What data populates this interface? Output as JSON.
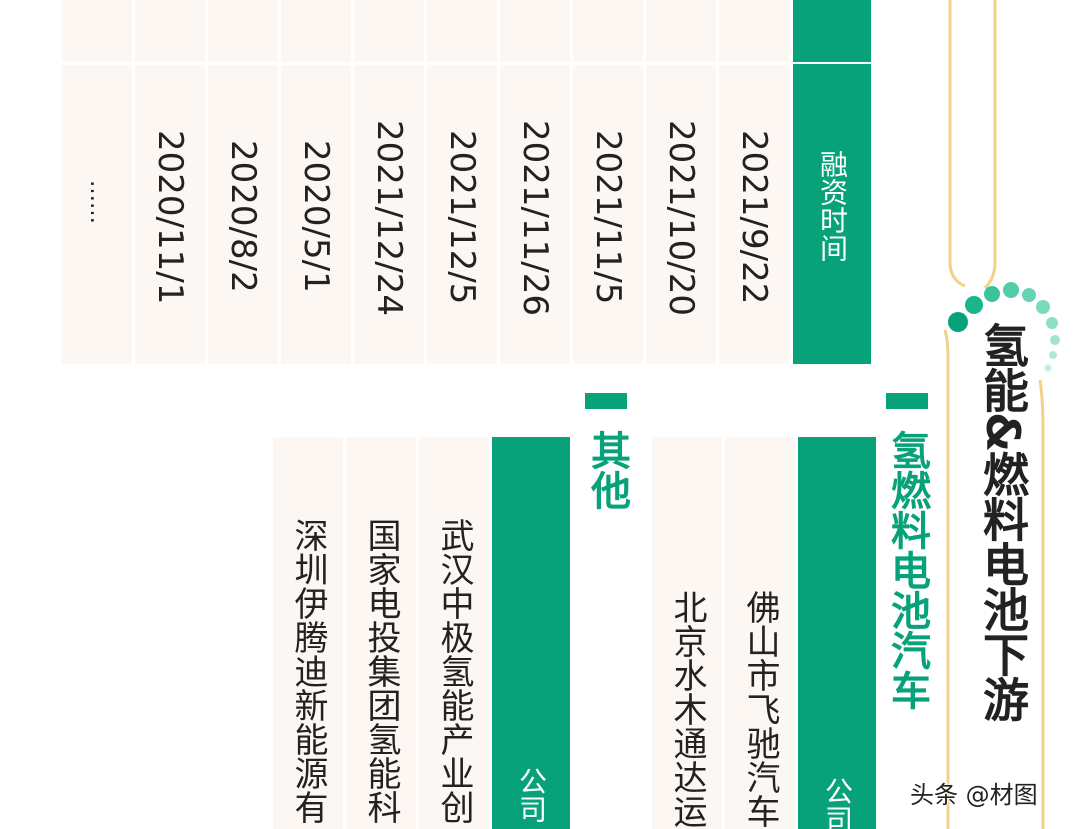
{
  "title": "氢能&燃料电池下游",
  "financing_table": {
    "header": "融资时间",
    "dates": [
      "2021/9/22",
      "2021/10/20",
      "2021/11/5",
      "2021/11/26",
      "2021/12/5",
      "2021/12/24",
      "2020/5/1",
      "2020/8/2",
      "2020/11/1",
      "……"
    ]
  },
  "section_fuel_cell": {
    "title": "氢燃料电池汽车",
    "header": "公司",
    "companies": [
      "佛山市飞驰汽车",
      "北京水木通达运"
    ]
  },
  "section_other": {
    "title": "其他",
    "header": "公司",
    "companies": [
      "武汉中极氢能产业创",
      "国家电投集团氢能科",
      "深圳伊腾迪新能源有"
    ]
  },
  "watermark": "头条 @材图",
  "colors": {
    "accent": "#07a27a",
    "cell_bg": "#fdf7f3",
    "text": "#222222",
    "frame": "#f2d28a",
    "dots": "#5fd0b0"
  }
}
